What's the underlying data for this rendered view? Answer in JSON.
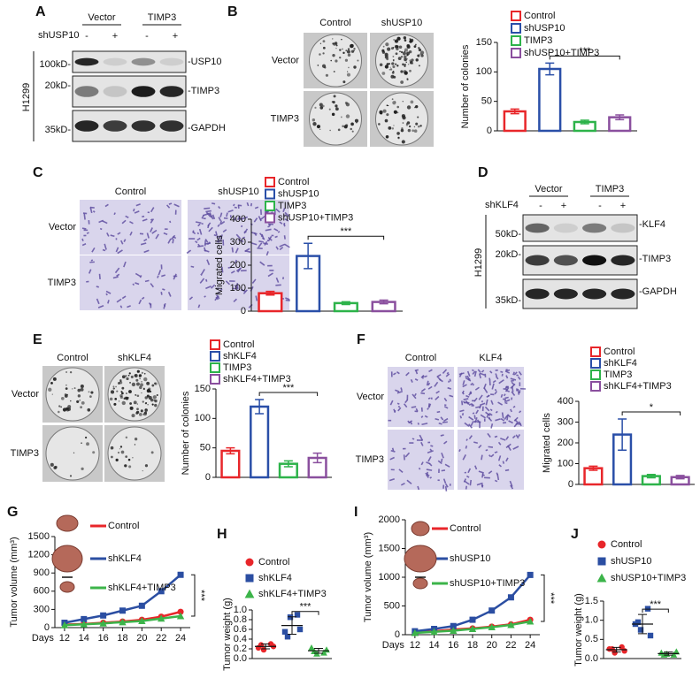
{
  "panel_letters": [
    "A",
    "B",
    "C",
    "D",
    "E",
    "F",
    "G",
    "H",
    "I",
    "J"
  ],
  "blots": [
    {
      "cell_line": "H1299",
      "treatment": "shUSP10",
      "groups": [
        "Vector",
        "TIMP3"
      ],
      "signs": [
        "-",
        "+",
        "-",
        "+"
      ],
      "markers": [
        "100kD-",
        "20kD-",
        "35kD-"
      ],
      "bands": [
        "-USP10",
        "-TIMP3",
        "-GAPDH"
      ]
    },
    {
      "cell_line": "H1299",
      "treatment": "shKLF4",
      "groups": [
        "Vector",
        "TIMP3"
      ],
      "signs": [
        "-",
        "+",
        "-",
        "+"
      ],
      "markers": [
        "50kD-",
        "20kD-",
        "35kD-"
      ],
      "bands": [
        "-KLF4",
        "-TIMP3",
        "-GAPDH"
      ]
    }
  ],
  "images": [
    {
      "columns": [
        "Control",
        "shUSP10"
      ],
      "rows": [
        "Vector",
        "TIMP3"
      ]
    },
    {
      "columns": [
        "Control",
        "shUSP10"
      ],
      "rows": [
        "Vector",
        "TIMP3"
      ]
    },
    {
      "columns": [
        "Control",
        "shKLF4"
      ],
      "rows": [
        "Vector",
        "TIMP3"
      ]
    },
    {
      "columns": [
        "Control",
        "KLF4"
      ],
      "rows": [
        "Vector",
        "TIMP3"
      ]
    }
  ],
  "chart_data": [
    {
      "type": "bar",
      "ylabel": "Number of colonies",
      "categories": [
        "Control",
        "shUSP10",
        "TIMP3",
        "shUSP10+TIMP3"
      ],
      "colors": [
        "#e8262a",
        "#2a4fa8",
        "#2db34a",
        "#8a4f9e"
      ],
      "values": [
        33,
        105,
        15,
        23
      ],
      "errors": [
        4,
        10,
        3,
        4
      ],
      "ylim": [
        0,
        150
      ],
      "yticks": [
        0,
        50,
        100,
        150
      ],
      "significance": "***"
    },
    {
      "type": "bar",
      "ylabel": "Migrated cells",
      "categories": [
        "Control",
        "shUSP10",
        "TIMP3",
        "shUSP10+TIMP3"
      ],
      "colors": [
        "#e8262a",
        "#2a4fa8",
        "#2db34a",
        "#8a4f9e"
      ],
      "values": [
        78,
        240,
        35,
        40
      ],
      "errors": [
        8,
        55,
        6,
        8
      ],
      "ylim": [
        0,
        400
      ],
      "yticks": [
        0,
        100,
        200,
        300,
        400
      ],
      "significance": "***"
    },
    {
      "type": "bar",
      "ylabel": "Number of colonies",
      "categories": [
        "Control",
        "shKLF4",
        "TIMP3",
        "shKLF4+TIMP3"
      ],
      "colors": [
        "#e8262a",
        "#2a4fa8",
        "#2db34a",
        "#8a4f9e"
      ],
      "values": [
        45,
        120,
        23,
        33
      ],
      "errors": [
        5,
        12,
        5,
        8
      ],
      "ylim": [
        0,
        150
      ],
      "yticks": [
        0,
        50,
        100,
        150
      ],
      "significance": "***"
    },
    {
      "type": "bar",
      "ylabel": "Migrated cells",
      "categories": [
        "Control",
        "shKLF4",
        "TIMP3",
        "shKLF4+TIMP3"
      ],
      "colors": [
        "#e8262a",
        "#2a4fa8",
        "#2db34a",
        "#8a4f9e"
      ],
      "values": [
        78,
        240,
        40,
        35
      ],
      "errors": [
        10,
        75,
        8,
        8
      ],
      "ylim": [
        0,
        400
      ],
      "yticks": [
        0,
        100,
        200,
        300,
        400
      ],
      "significance": "*"
    },
    {
      "type": "line",
      "ylabel": "Tumor volume (mm³)",
      "xlabel": "Days",
      "x": [
        12,
        14,
        16,
        18,
        20,
        22,
        24
      ],
      "xlim": [
        11,
        25
      ],
      "xticks": [
        12,
        14,
        16,
        18,
        20,
        22,
        24
      ],
      "ylim": [
        0,
        1500
      ],
      "yticks": [
        0,
        300,
        600,
        900,
        1200,
        1500
      ],
      "series": [
        {
          "name": "Control",
          "color": "#e8262a",
          "marker": "circle",
          "values": [
            50,
            60,
            80,
            100,
            130,
            180,
            260
          ]
        },
        {
          "name": "shKLF4",
          "color": "#2b4ea2",
          "marker": "square",
          "values": [
            80,
            140,
            200,
            280,
            360,
            600,
            870
          ]
        },
        {
          "name": "shKLF4+TIMP3",
          "color": "#3cb44a",
          "marker": "triangle",
          "values": [
            40,
            55,
            70,
            90,
            110,
            150,
            190
          ]
        }
      ],
      "significance": "***"
    },
    {
      "type": "dot",
      "ylabel": "Tumor weight (g)",
      "ylim": [
        0,
        1
      ],
      "yticks": [
        {
          "value": 0,
          "label": "0.0"
        },
        0.2,
        0.4,
        0.6,
        0.8,
        {
          "value": 1,
          "label": "1.0"
        }
      ],
      "series": [
        {
          "name": "Control",
          "color": "#e8262a",
          "marker": "circle",
          "values": [
            0.22,
            0.3,
            0.18,
            0.25,
            0.28
          ],
          "mean": 0.25,
          "sd": 0.05
        },
        {
          "name": "shKLF4",
          "color": "#2b4ea2",
          "marker": "square",
          "values": [
            0.55,
            0.9,
            0.85,
            0.6,
            0.45
          ],
          "mean": 0.68,
          "sd": 0.18
        },
        {
          "name": "shKLF4+TIMP3",
          "color": "#3cb44a",
          "marker": "triangle",
          "values": [
            0.22,
            0.12,
            0.1,
            0.18,
            0.15
          ],
          "mean": 0.16,
          "sd": 0.05
        }
      ],
      "significance": "***"
    },
    {
      "type": "line",
      "ylabel": "Tumor volume (mm³)",
      "xlabel": "Days",
      "x": [
        12,
        14,
        16,
        18,
        20,
        22,
        24
      ],
      "xlim": [
        11,
        25
      ],
      "xticks": [
        12,
        14,
        16,
        18,
        20,
        22,
        24
      ],
      "ylim": [
        0,
        2000
      ],
      "yticks": [
        0,
        500,
        1000,
        1500,
        2000
      ],
      "series": [
        {
          "name": "Control",
          "color": "#e8262a",
          "marker": "circle",
          "values": [
            40,
            60,
            90,
            110,
            140,
            180,
            260
          ]
        },
        {
          "name": "shUSP10",
          "color": "#2b4ea2",
          "marker": "square",
          "values": [
            60,
            100,
            150,
            260,
            420,
            650,
            1040
          ]
        },
        {
          "name": "shUSP10+TIMP3",
          "color": "#3cb44a",
          "marker": "triangle",
          "values": [
            30,
            50,
            70,
            100,
            130,
            170,
            230
          ]
        }
      ],
      "significance": "***"
    },
    {
      "type": "dot",
      "ylabel": "Tumor weight (g)",
      "ylim": [
        0,
        1.5
      ],
      "yticks": [
        {
          "value": 0,
          "label": "0.0"
        },
        0.5,
        {
          "value": 1,
          "label": "1.0"
        },
        1.5
      ],
      "series": [
        {
          "name": "Control",
          "color": "#e8262a",
          "marker": "circle",
          "values": [
            0.25,
            0.3,
            0.15,
            0.2,
            0.25
          ],
          "mean": 0.23,
          "sd": 0.06
        },
        {
          "name": "shUSP10",
          "color": "#2b4ea2",
          "marker": "square",
          "values": [
            0.9,
            1.3,
            0.75,
            0.6,
            0.95
          ],
          "mean": 0.9,
          "sd": 0.25
        },
        {
          "name": "shUSP10+TIMP3",
          "color": "#3cb44a",
          "marker": "triangle",
          "values": [
            0.15,
            0.1,
            0.12,
            0.18,
            0.1
          ],
          "mean": 0.13,
          "sd": 0.04
        }
      ],
      "significance": "***"
    }
  ]
}
